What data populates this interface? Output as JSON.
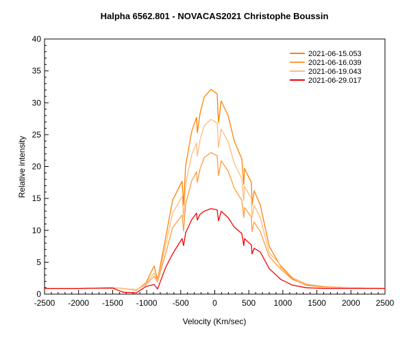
{
  "chart_data": {
    "type": "line",
    "title": "Halpha 6562.801 - NOVACAS2021   Christophe Boussin",
    "xlabel": "Velocity (Km/sec)",
    "ylabel": "Relative intensity",
    "xlim": [
      -2500,
      2500
    ],
    "ylim": [
      0,
      40
    ],
    "xticks": [
      -2500,
      -2000,
      -1500,
      -1000,
      -500,
      0,
      500,
      1000,
      1500,
      2000,
      2500
    ],
    "xtick_labels": [
      "-2500",
      "-2000",
      "-1500",
      "-1000",
      "-500",
      "0",
      "500",
      "1000",
      "1500",
      "2000",
      "2500"
    ],
    "yticks": [
      0,
      5,
      10,
      15,
      20,
      25,
      30,
      35,
      40
    ],
    "ytick_labels": [
      "0",
      "5",
      "10",
      "15",
      "20",
      "25",
      "30",
      "35",
      "40"
    ],
    "grid": false,
    "legend_position": "top-right",
    "x": [
      -2500,
      -2000,
      -1500,
      -1350,
      -1150,
      -1010,
      -890,
      -840,
      -720,
      -620,
      -480,
      -458,
      -428,
      -337,
      -267,
      -257,
      -216,
      -156,
      -55,
      35,
      55,
      95,
      196,
      287,
      397,
      427,
      437,
      538,
      548,
      578,
      669,
      800,
      971,
      1142,
      1343,
      1600,
      2000,
      2500
    ],
    "series": [
      {
        "name": "2021-06-15.053",
        "color": "#ff8000",
        "values": [
          0.9,
          0.9,
          1.0,
          0.9,
          0.6,
          1.8,
          4.4,
          2.2,
          8.9,
          14.7,
          17.7,
          14.0,
          20.1,
          25.6,
          27.7,
          25.3,
          28.3,
          30.9,
          32.1,
          31.4,
          26.9,
          30.3,
          28.0,
          24.0,
          21.2,
          17.2,
          19.7,
          17.5,
          14.0,
          16.2,
          14.0,
          7.5,
          4.3,
          2.4,
          1.4,
          1.1,
          1.0,
          0.9
        ]
      },
      {
        "name": "2021-06-16.039",
        "color": "#ff9a3c",
        "values": [
          0.9,
          0.9,
          0.97,
          0.9,
          0.7,
          1.5,
          2.8,
          1.9,
          6.4,
          10.4,
          12.4,
          9.9,
          14.1,
          17.8,
          19.2,
          17.5,
          19.6,
          21.4,
          22.2,
          21.7,
          18.6,
          20.9,
          19.3,
          16.6,
          14.7,
          12.0,
          13.6,
          12.1,
          9.8,
          11.3,
          9.8,
          5.9,
          3.9,
          2.3,
          1.5,
          1.2,
          1.0,
          0.9
        ]
      },
      {
        "name": "2021-06-19.043",
        "color": "#ffbb7a",
        "values": [
          0.9,
          0.9,
          0.99,
          0.9,
          0.65,
          1.7,
          3.3,
          2.0,
          7.7,
          12.7,
          15.3,
          12.0,
          17.3,
          21.9,
          23.7,
          21.6,
          24.2,
          26.4,
          27.4,
          26.8,
          23.0,
          25.9,
          23.9,
          20.5,
          18.1,
          14.7,
          16.9,
          15.0,
          12.0,
          13.9,
          12.0,
          6.5,
          4.5,
          2.6,
          1.6,
          1.2,
          1.0,
          0.9
        ]
      },
      {
        "name": "2021-06-29.017",
        "color": "#ee0000",
        "values": [
          0.9,
          0.9,
          0.95,
          0.3,
          0.2,
          1.2,
          1.5,
          0.8,
          4.2,
          6.3,
          8.7,
          7.6,
          9.6,
          11.7,
          12.7,
          11.6,
          12.5,
          13.0,
          13.4,
          13.2,
          11.5,
          13.0,
          12.0,
          10.5,
          9.5,
          7.6,
          8.7,
          7.7,
          6.3,
          7.2,
          6.6,
          4.0,
          2.3,
          1.4,
          1.0,
          0.9,
          0.9,
          0.9
        ]
      }
    ]
  }
}
